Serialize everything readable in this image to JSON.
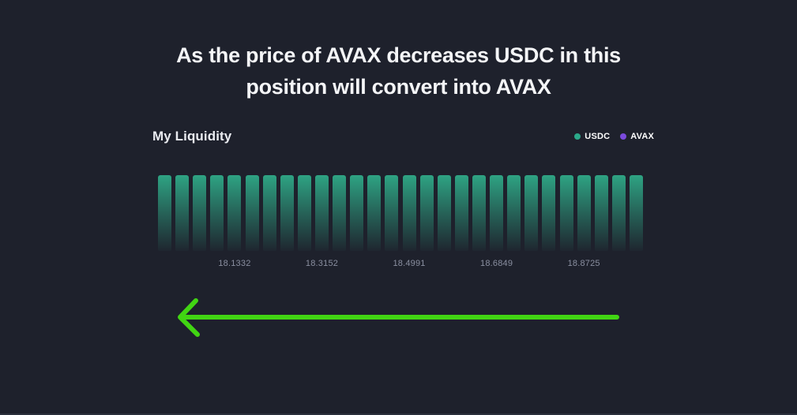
{
  "title": {
    "line1": "As the price of AVAX decreases USDC in this",
    "line2": "position will convert into AVAX"
  },
  "chart": {
    "heading": "My Liquidity",
    "legend": [
      {
        "label": "USDC",
        "color": "#2BA98A"
      },
      {
        "label": "AVAX",
        "color": "#7B4ADD"
      }
    ]
  },
  "chart_data": {
    "type": "bar",
    "title": "My Liquidity",
    "xlabel": "",
    "ylabel": "",
    "grid": false,
    "legend_position": "top-right",
    "ylim": [
      0,
      1
    ],
    "num_bins": 28,
    "bin_price_step_pct": 0.2,
    "series": [
      {
        "name": "USDC",
        "color": "#2EA383",
        "values": [
          1,
          1,
          1,
          1,
          1,
          1,
          1,
          1,
          1,
          1,
          1,
          1,
          1,
          1,
          1,
          1,
          1,
          1,
          1,
          1,
          1,
          1,
          1,
          1,
          1,
          1,
          1,
          1
        ]
      },
      {
        "name": "AVAX",
        "color": "#7B4ADD",
        "values": [
          0,
          0,
          0,
          0,
          0,
          0,
          0,
          0,
          0,
          0,
          0,
          0,
          0,
          0,
          0,
          0,
          0,
          0,
          0,
          0,
          0,
          0,
          0,
          0,
          0,
          0,
          0,
          0
        ]
      }
    ],
    "x_ticks": [
      {
        "bin_index": 4,
        "label": "18.1332"
      },
      {
        "bin_index": 9,
        "label": "18.3152"
      },
      {
        "bin_index": 14,
        "label": "18.4991"
      },
      {
        "bin_index": 19,
        "label": "18.6849"
      },
      {
        "bin_index": 24,
        "label": "18.8725"
      }
    ]
  },
  "annotation": {
    "arrow_direction": "left",
    "arrow_color": "#41D513"
  },
  "colors": {
    "background": "#1E212C",
    "title_text": "#F4F5F7",
    "tick_text": "#8A8FA0"
  }
}
